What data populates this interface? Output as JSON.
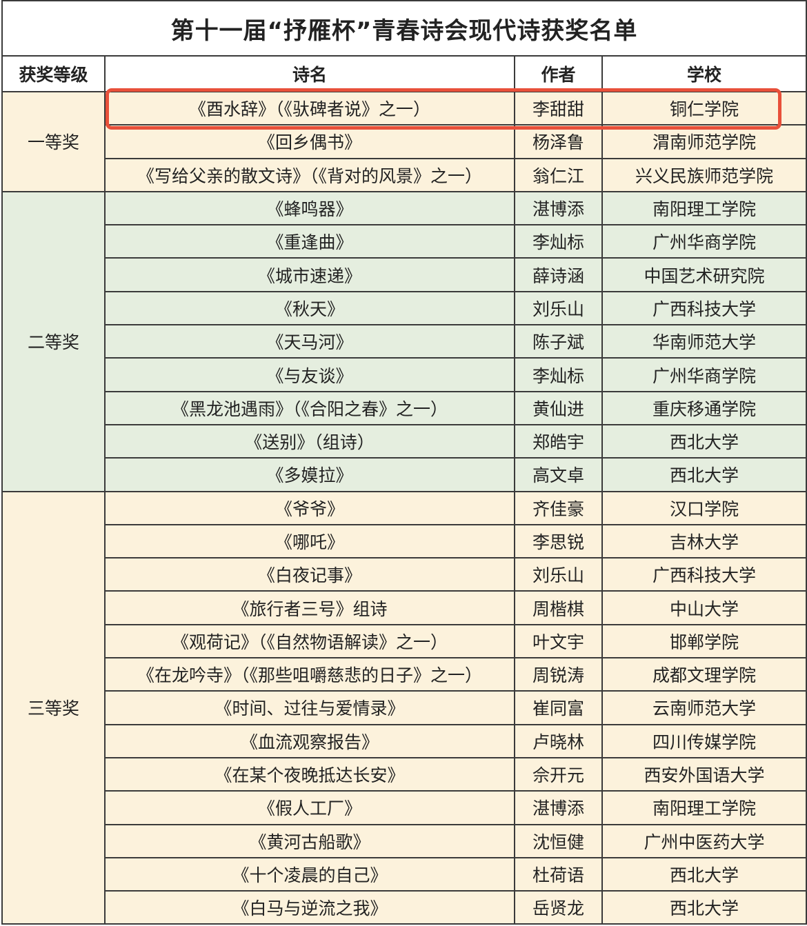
{
  "title": "第十一届“抒雁杯”青春诗会现代诗获奖名单",
  "headers": {
    "level": "获奖等级",
    "poem": "诗名",
    "author": "作者",
    "school": "学校"
  },
  "colors": {
    "first": "#fcf2dc",
    "second": "#e5eedf",
    "third": "#fcf2dc",
    "highlight": "#e8503a"
  },
  "highlighted_row": {
    "group": 0,
    "row": 0
  },
  "groups": [
    {
      "level": "一等奖",
      "css": "lv1",
      "rows": [
        {
          "poem": "《酉水辞》（《驮碑者说》之一）",
          "author": "李甜甜",
          "school": "铜仁学院"
        },
        {
          "poem": "《回乡偶书》",
          "author": "杨泽鲁",
          "school": "渭南师范学院"
        },
        {
          "poem": "《写给父亲的散文诗》（《背对的风景》之一）",
          "author": "翁仁江",
          "school": "兴义民族师范学院"
        }
      ]
    },
    {
      "level": "二等奖",
      "css": "lv2",
      "rows": [
        {
          "poem": "《蜂鸣器》",
          "author": "湛博添",
          "school": "南阳理工学院"
        },
        {
          "poem": "《重逢曲》",
          "author": "李灿标",
          "school": "广州华商学院"
        },
        {
          "poem": "《城市速递》",
          "author": "薛诗涵",
          "school": "中国艺术研究院"
        },
        {
          "poem": "《秋天》",
          "author": "刘乐山",
          "school": "广西科技大学"
        },
        {
          "poem": "《天马河》",
          "author": "陈子斌",
          "school": "华南师范大学"
        },
        {
          "poem": "《与友谈》",
          "author": "李灿标",
          "school": "广州华商学院"
        },
        {
          "poem": "《黑龙池遇雨》（《合阳之春》之一）",
          "author": "黄仙进",
          "school": "重庆移通学院"
        },
        {
          "poem": "《送别》（组诗）",
          "author": "郑皓宇",
          "school": "西北大学"
        },
        {
          "poem": "《多嫫拉》",
          "author": "高文卓",
          "school": "西北大学"
        }
      ]
    },
    {
      "level": "三等奖",
      "css": "lv3",
      "rows": [
        {
          "poem": "《爷爷》",
          "author": "齐佳豪",
          "school": "汉口学院"
        },
        {
          "poem": "《哪吒》",
          "author": "李思锐",
          "school": "吉林大学"
        },
        {
          "poem": "《白夜记事》",
          "author": "刘乐山",
          "school": "广西科技大学"
        },
        {
          "poem": "《旅行者三号》组诗",
          "author": "周楷棋",
          "school": "中山大学"
        },
        {
          "poem": "《观荷记》（《自然物语解读》之一）",
          "author": "叶文宇",
          "school": "邯郸学院"
        },
        {
          "poem": "《在龙吟寺》（《那些咀嚼慈悲的日子》之一）",
          "author": "周锐涛",
          "school": "成都文理学院"
        },
        {
          "poem": "《时间、过往与爱情录》",
          "author": "崔同富",
          "school": "云南师范大学"
        },
        {
          "poem": "《血流观察报告》",
          "author": "卢晓林",
          "school": "四川传媒学院"
        },
        {
          "poem": "《在某个夜晚抵达长安》",
          "author": "佘开元",
          "school": "西安外国语大学"
        },
        {
          "poem": "《假人工厂》",
          "author": "湛博添",
          "school": "南阳理工学院"
        },
        {
          "poem": "《黄河古船歌》",
          "author": "沈恒健",
          "school": "广州中医药大学"
        },
        {
          "poem": "《十个凌晨的自己》",
          "author": "杜荷语",
          "school": "西北大学"
        },
        {
          "poem": "《白马与逆流之我》",
          "author": "岳贤龙",
          "school": "西北大学"
        }
      ]
    }
  ]
}
